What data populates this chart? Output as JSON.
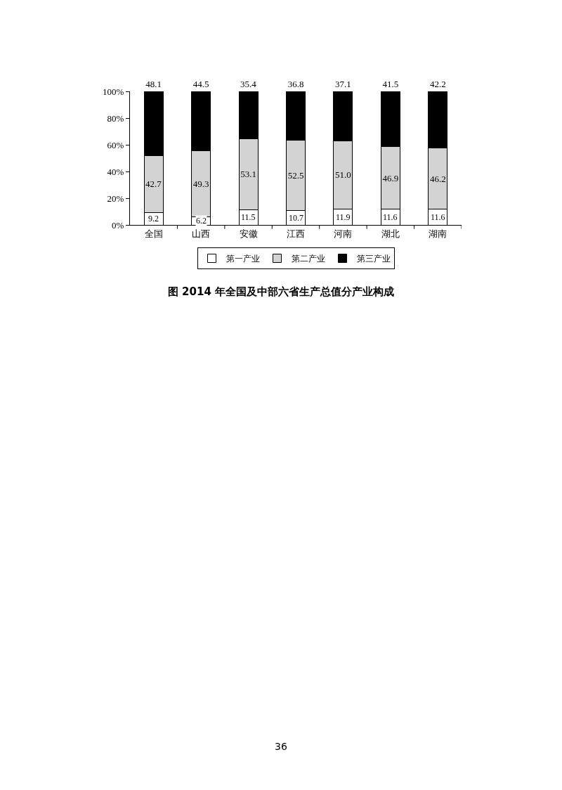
{
  "chart_data": {
    "type": "bar",
    "title": "图 2014 年全国及中部六省生产总值分产业构成",
    "stacked": true,
    "categories": [
      "全国",
      "山西",
      "安徽",
      "江西",
      "河南",
      "湖北",
      "湖南"
    ],
    "series": [
      {
        "name": "第一产业",
        "color": "#ffffff",
        "values": [
          9.2,
          6.2,
          11.5,
          10.7,
          11.9,
          11.6,
          11.6
        ],
        "value_labels": [
          "9.2",
          "6.2",
          "11.5",
          "10.7",
          "11.9",
          "11.6",
          "11.6"
        ]
      },
      {
        "name": "第二产业",
        "color": "#d3d3d3",
        "values": [
          42.7,
          49.3,
          53.1,
          52.5,
          51.0,
          46.9,
          46.2
        ],
        "value_labels": [
          "42.7",
          "49.3",
          "53.1",
          "52.5",
          "51.0",
          "46.9",
          "46.2"
        ]
      },
      {
        "name": "第三产业",
        "color": "#000000",
        "values": [
          48.1,
          44.5,
          35.4,
          36.8,
          37.1,
          41.5,
          42.2
        ],
        "value_labels": [
          "48.1",
          "44.5",
          "35.4",
          "36.8",
          "37.1",
          "41.5",
          "42.2"
        ]
      }
    ],
    "ylim": [
      0,
      100
    ],
    "yticks": [
      {
        "value": 0,
        "label": "0%"
      },
      {
        "value": 20,
        "label": "20%"
      },
      {
        "value": 40,
        "label": "40%"
      },
      {
        "value": 60,
        "label": "60%"
      },
      {
        "value": 80,
        "label": "80%"
      },
      {
        "value": 100,
        "label": "100%"
      }
    ],
    "grid": false,
    "legend": "bottom",
    "annotations": [
      "36"
    ]
  }
}
